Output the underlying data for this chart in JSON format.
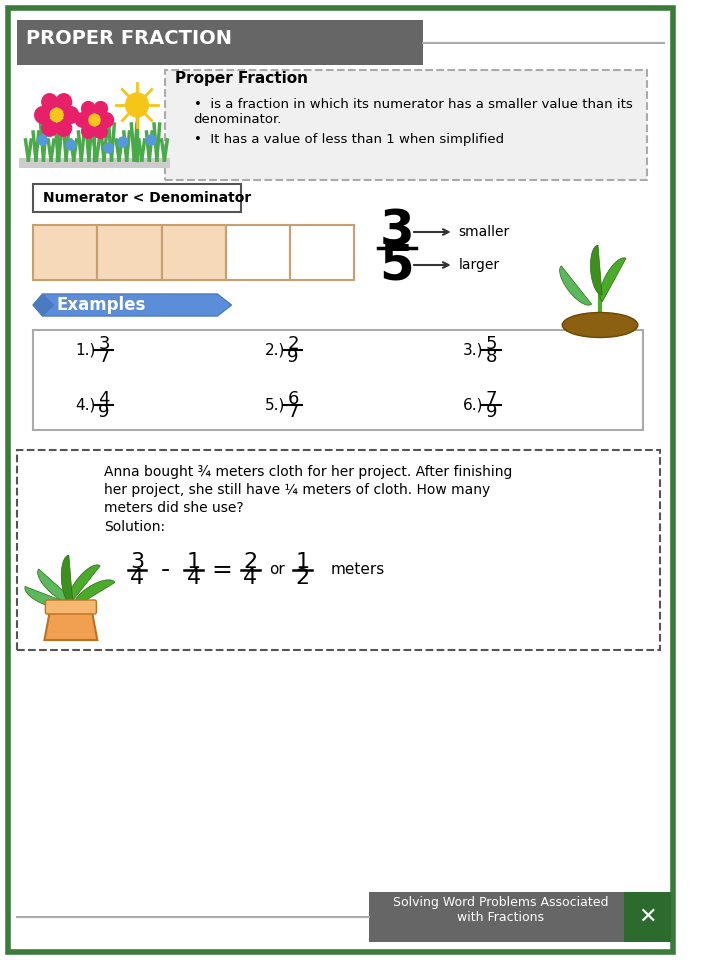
{
  "title": "PROPER FRACTION",
  "title_bg": "#666666",
  "title_text_color": "#ffffff",
  "border_color": "#3a7a3a",
  "bg_color": "#ffffff",
  "definition_title": "Proper Fraction",
  "definition_bullets": [
    "is a fraction in which its numerator has a smaller value than its denominator.",
    "It has a value of less than 1 when simplified"
  ],
  "definition_bg": "#f0f0f0",
  "numerator_label": "Numerator < Denominator",
  "fraction_display": {
    "num": "3",
    "den": "5"
  },
  "fraction_labels": [
    "smaller",
    "larger"
  ],
  "bar_colors": [
    "#f5d9b8",
    "#f5d9b8",
    "#f5d9b8",
    "#ffffff",
    "#ffffff"
  ],
  "bar_border": "#c8a070",
  "examples_label": "Examples",
  "examples_bg": "#5b8dd9",
  "examples": [
    {
      "n": "1.)",
      "num": "3",
      "den": "7"
    },
    {
      "n": "2.)",
      "num": "2",
      "den": "9"
    },
    {
      "n": "3.)",
      "num": "5",
      "den": "8"
    },
    {
      "n": "4.)",
      "num": "4",
      "den": "9"
    },
    {
      "n": "5.)",
      "num": "6",
      "den": "7"
    },
    {
      "n": "6.)",
      "num": "7",
      "den": "9"
    }
  ],
  "word_problem": "Anna bought ¾ meters cloth for her project. After finishing her project, she still have ¼ meters of cloth. How many meters did she use?",
  "solution_line": "Solution:",
  "solution_math": "\\frac{3}{4} - \\frac{1}{4} = \\frac{2}{4} or \\frac{1}{2} meters",
  "footer_text": "Solving Word Problems Associated\nwith Fractions",
  "footer_bg": "#666666",
  "footer_text_color": "#ffffff"
}
